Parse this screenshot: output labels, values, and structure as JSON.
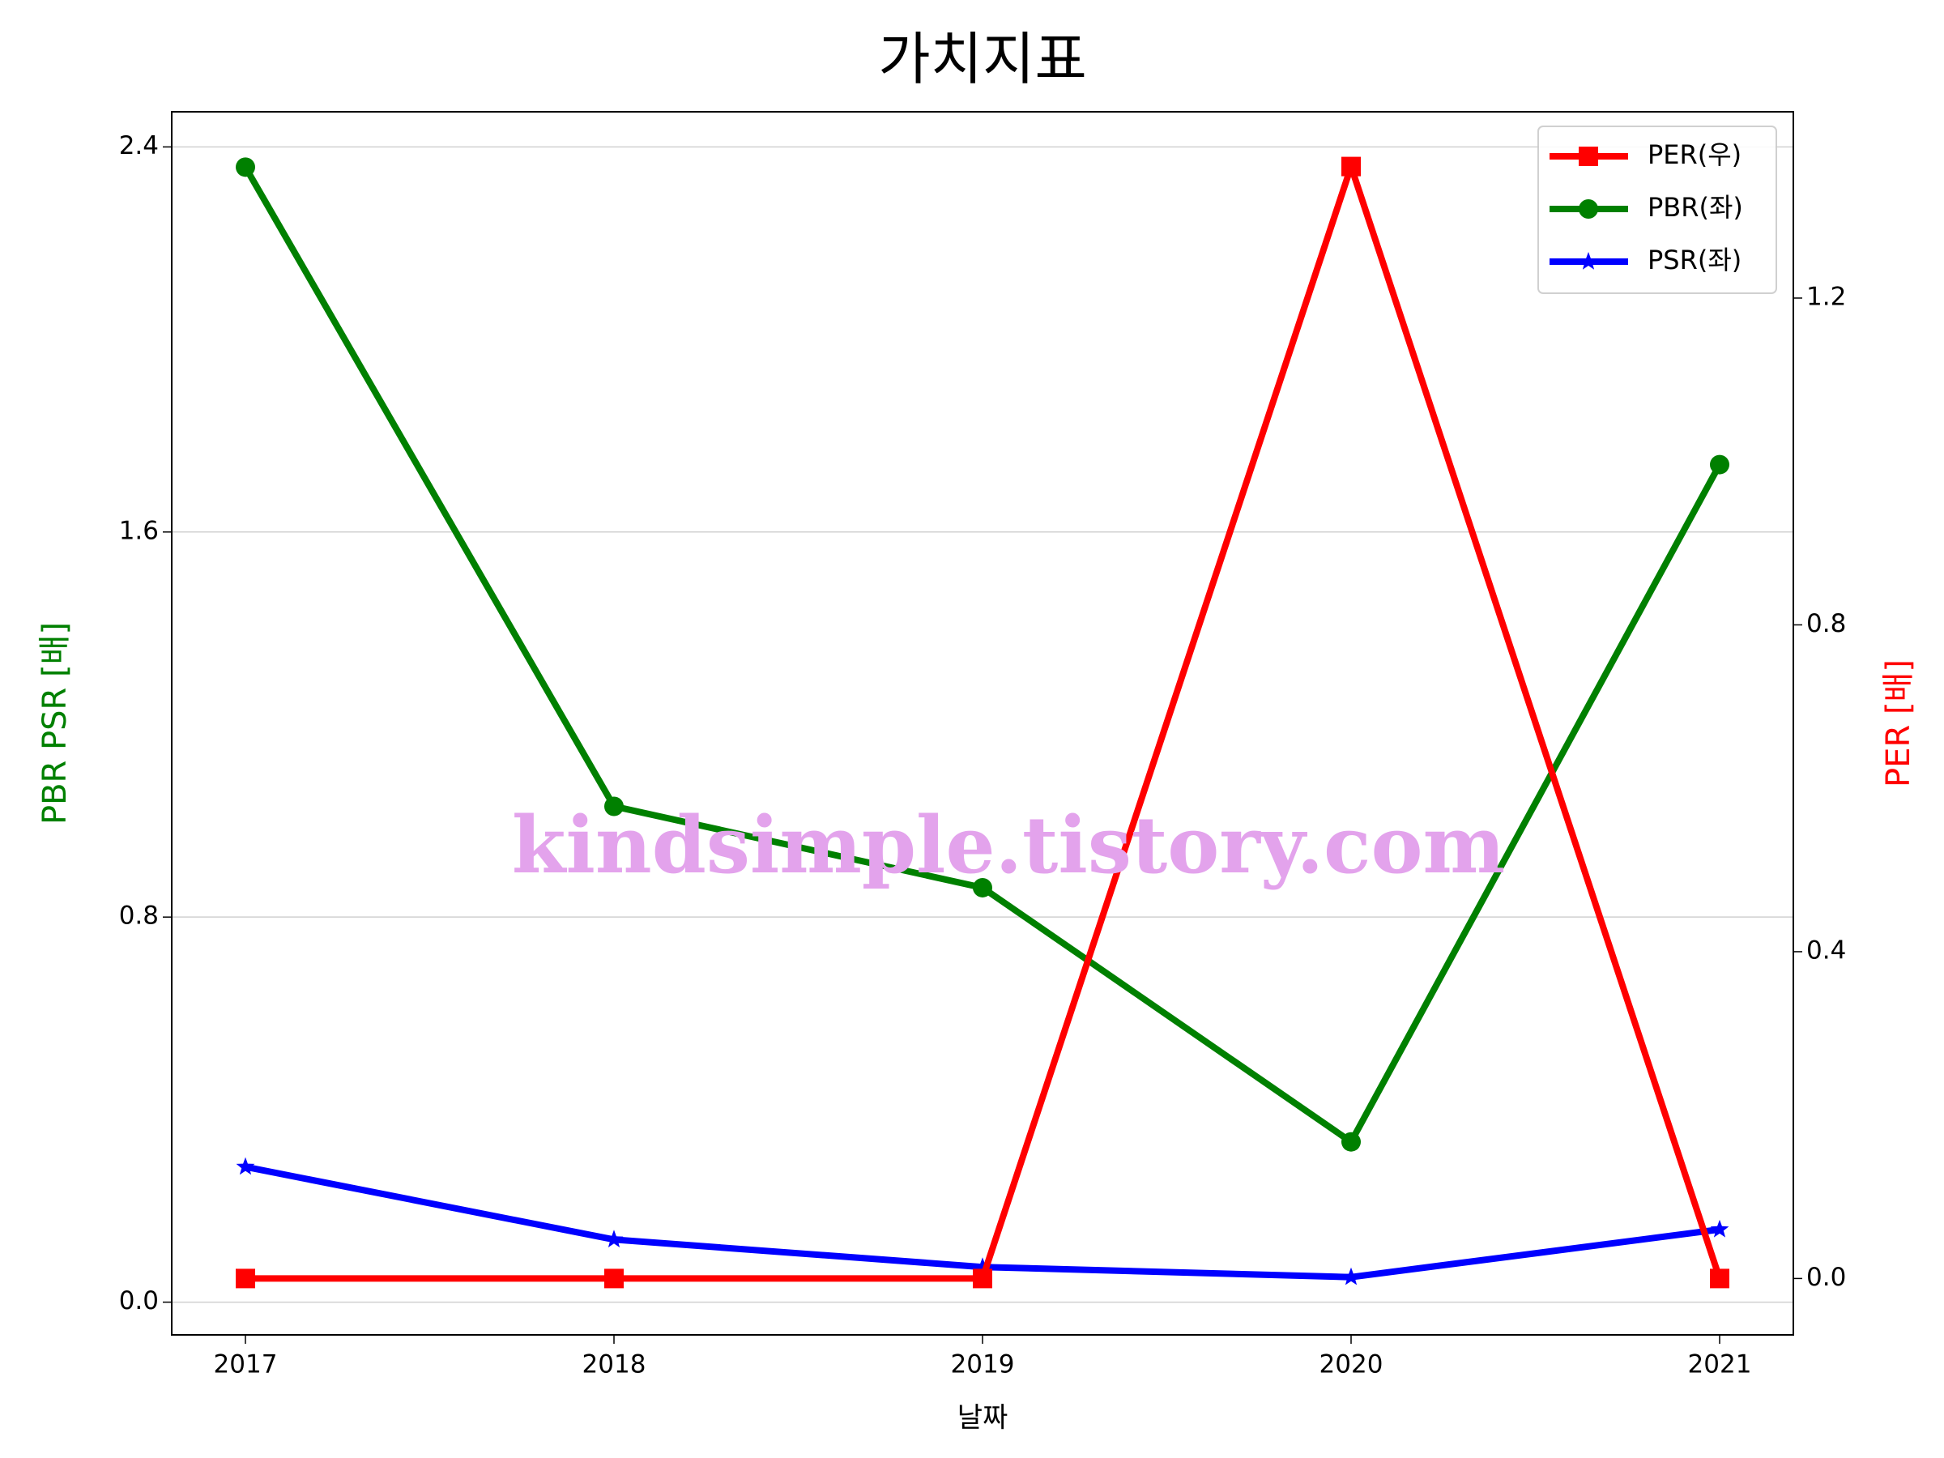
{
  "chart_data": {
    "type": "line",
    "title": "가치지표",
    "xlabel": "날짜",
    "ylabel": "PBR PSR [배]",
    "y2label": "PER [배]",
    "ylabel_color": "#008000",
    "y2label_color": "#ff0000",
    "annotation": "kindsimple.tistory.com",
    "x": [
      2017,
      2018,
      2019,
      2020,
      2021
    ],
    "xlim": [
      2016.8,
      2021.2
    ],
    "xticks": [
      2017,
      2018,
      2019,
      2020,
      2021
    ],
    "ylim": [
      -0.068,
      2.473
    ],
    "yticks": [
      {
        "value": 0,
        "label": "0.0"
      },
      0.8,
      1.6,
      2.4
    ],
    "y2lim": [
      -0.069,
      1.428
    ],
    "y2ticks": [
      {
        "value": 0,
        "label": "0.0"
      },
      0.4,
      0.8,
      1.2
    ],
    "grid": true,
    "legend": "upper right",
    "series": [
      {
        "name": "PER(우)",
        "color": "#ff0000",
        "marker": "square",
        "axis": "y2",
        "values": [
          0,
          0,
          0,
          1.361,
          0
        ]
      },
      {
        "name": "PBR(좌)",
        "color": "#008000",
        "marker": "circle",
        "values": [
          2.358,
          1.03,
          0.861,
          0.333,
          1.74
        ]
      },
      {
        "name": "PSR(좌)",
        "color": "#0000ff",
        "marker": "star",
        "values": [
          0.281,
          0.13,
          0.073,
          0.052,
          0.151
        ]
      }
    ]
  }
}
